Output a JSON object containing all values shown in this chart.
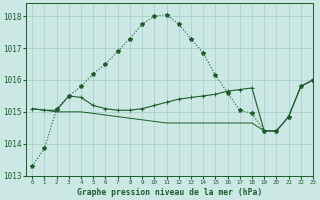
{
  "title": "Graphe pression niveau de la mer (hPa)",
  "background_color": "#cce8e4",
  "grid_color": "#aacfcb",
  "line_color": "#1a5c2a",
  "xlim": [
    -0.5,
    23
  ],
  "ylim": [
    1013.0,
    1018.4
  ],
  "yticks": [
    1013,
    1014,
    1015,
    1016,
    1017,
    1018
  ],
  "xticks": [
    0,
    1,
    2,
    3,
    4,
    5,
    6,
    7,
    8,
    9,
    10,
    11,
    12,
    13,
    14,
    15,
    16,
    17,
    18,
    19,
    20,
    21,
    22,
    23
  ],
  "s1_x": [
    0,
    1,
    2,
    3,
    4,
    5,
    6,
    7,
    8,
    9,
    10,
    11,
    12,
    13,
    14,
    15,
    16,
    17,
    18,
    19,
    20,
    21,
    22,
    23
  ],
  "s1_y": [
    1013.3,
    1013.85,
    1015.1,
    1015.5,
    1015.8,
    1016.2,
    1016.5,
    1016.9,
    1017.3,
    1017.75,
    1018.0,
    1018.05,
    1017.75,
    1017.3,
    1016.85,
    1016.15,
    1015.6,
    1015.05,
    1014.95,
    1014.4,
    1014.4,
    1014.85,
    1015.8,
    1016.0
  ],
  "s2_x": [
    0,
    1,
    2,
    3,
    4,
    5,
    6,
    7,
    8,
    9,
    10,
    11,
    12,
    13,
    14,
    15,
    16,
    17,
    18,
    19,
    20,
    21,
    22,
    23
  ],
  "s2_y": [
    1015.1,
    1015.05,
    1015.05,
    1015.5,
    1015.45,
    1015.2,
    1015.1,
    1015.05,
    1015.05,
    1015.1,
    1015.2,
    1015.3,
    1015.4,
    1015.45,
    1015.5,
    1015.55,
    1015.65,
    1015.7,
    1015.75,
    1014.4,
    1014.4,
    1014.85,
    1015.8,
    1016.0
  ],
  "s3_x": [
    0,
    1,
    2,
    3,
    4,
    5,
    6,
    7,
    8,
    9,
    10,
    11,
    12,
    13,
    14,
    15,
    16,
    17,
    18,
    19,
    20,
    21,
    22,
    23
  ],
  "s3_y": [
    1015.1,
    1015.05,
    1015.0,
    1015.0,
    1015.0,
    1014.95,
    1014.9,
    1014.85,
    1014.8,
    1014.75,
    1014.7,
    1014.65,
    1014.65,
    1014.65,
    1014.65,
    1014.65,
    1014.65,
    1014.65,
    1014.65,
    1014.4,
    1014.4,
    1014.85,
    1015.8,
    1016.0
  ]
}
